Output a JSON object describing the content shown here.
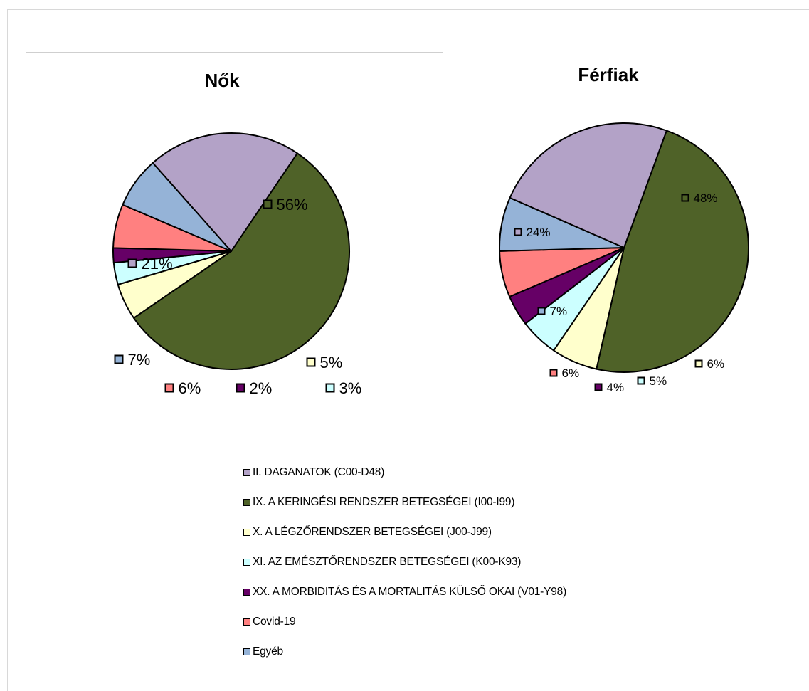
{
  "chart_data": [
    {
      "type": "pie",
      "title": "Nők",
      "categories": [
        "IX. A KERINGÉSI RENDSZER BETEGSÉGEI (I00-I99)",
        "X. A LÉGZŐRENDSZER BETEGSÉGEI (J00-J99)",
        "XI. AZ EMÉSZTŐRENDSZER BETEGSÉGEI (K00-K93)",
        "XX. A MORBIDITÁS ÉS A MORTALITÁS KÜLSŐ OKAI (V01-Y98)",
        "Covid-19",
        "Egyéb",
        "II. DAGANATOK (C00-D48)"
      ],
      "values": [
        56,
        5,
        3,
        2,
        6,
        7,
        21
      ],
      "labels": [
        "56%",
        "5%",
        "3%",
        "2%",
        "6%",
        "7%",
        "21%"
      ]
    },
    {
      "type": "pie",
      "title": "Férfiak",
      "categories": [
        "IX. A KERINGÉSI RENDSZER BETEGSÉGEI (I00-I99)",
        "X. A LÉGZŐRENDSZER BETEGSÉGEI (J00-J99)",
        "XI. AZ EMÉSZTŐRENDSZER BETEGSÉGEI (K00-K93)",
        "XX. A MORBIDITÁS ÉS A MORTALITÁS KÜLSŐ OKAI (V01-Y98)",
        "Covid-19",
        "Egyéb",
        "II. DAGANATOK (C00-D48)"
      ],
      "values": [
        48,
        6,
        5,
        4,
        6,
        7,
        24
      ],
      "labels": [
        "48%",
        "6%",
        "5%",
        "4%",
        "6%",
        "7%",
        "24%"
      ]
    }
  ],
  "legend": [
    {
      "label": "II. DAGANATOK (C00-D48)",
      "color": "#b3a2c7"
    },
    {
      "label": "IX. A KERINGÉSI RENDSZER BETEGSÉGEI (I00-I99)",
      "color": "#4f6228"
    },
    {
      "label": "X. A LÉGZŐRENDSZER BETEGSÉGEI (J00-J99)",
      "color": "#ffffcc"
    },
    {
      "label": "XI. AZ EMÉSZTŐRENDSZER BETEGSÉGEI (K00-K93)",
      "color": "#ccffff"
    },
    {
      "label": "XX. A MORBIDITÁS ÉS A MORTALITÁS KÜLSŐ OKAI (V01-Y98)",
      "color": "#660066"
    },
    {
      "label": "Covid-19",
      "color": "#ff8080"
    },
    {
      "label": "Egyéb",
      "color": "#95b3d7"
    }
  ],
  "colors": {
    "IX. A KERINGÉSI RENDSZER BETEGSÉGEI (I00-I99)": "#4f6228",
    "X. A LÉGZŐRENDSZER BETEGSÉGEI (J00-J99)": "#ffffcc",
    "XI. AZ EMÉSZTŐRENDSZER BETEGSÉGEI (K00-K93)": "#ccffff",
    "XX. A MORBIDITÁS ÉS A MORTALITÁS KÜLSŐ OKAI (V01-Y98)": "#660066",
    "Covid-19": "#ff8080",
    "Egyéb": "#95b3d7",
    "II. DAGANATOK (C00-D48)": "#b3a2c7"
  }
}
